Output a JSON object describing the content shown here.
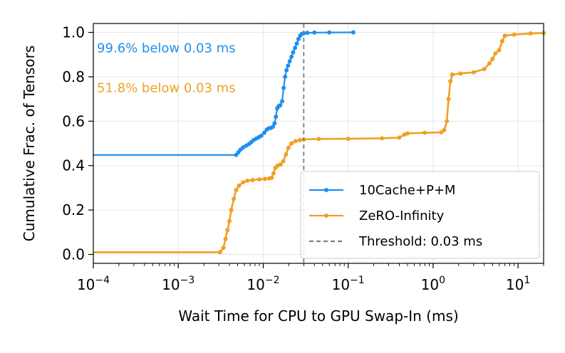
{
  "chart_data": {
    "type": "line",
    "title": "",
    "xlabel": "Wait Time for CPU to GPU Swap-In (ms)",
    "ylabel": "Cumulative Frac. of Tensors",
    "xscale": "log",
    "xlim": [
      0.0001,
      20
    ],
    "ylim": [
      -0.04,
      1.04
    ],
    "grid": true,
    "legend_position": "lower-right",
    "x_ticks": [
      {
        "value": 0.0001,
        "base": "10",
        "exp": "−4"
      },
      {
        "value": 0.001,
        "base": "10",
        "exp": "−3"
      },
      {
        "value": 0.01,
        "base": "10",
        "exp": "−2"
      },
      {
        "value": 0.1,
        "base": "10",
        "exp": "−1"
      },
      {
        "value": 1,
        "base": "10",
        "exp": "0"
      },
      {
        "value": 10,
        "base": "10",
        "exp": "1"
      }
    ],
    "y_ticks": [
      {
        "value": 0.0,
        "label": "0.0"
      },
      {
        "value": 0.2,
        "label": "0.2"
      },
      {
        "value": 0.4,
        "label": "0.4"
      },
      {
        "value": 0.6,
        "label": "0.6"
      },
      {
        "value": 0.8,
        "label": "0.8"
      },
      {
        "value": 1.0,
        "label": "1.0"
      }
    ],
    "series": [
      {
        "name": "10Cache+P+M",
        "color": "#1f8ff0",
        "points": [
          [
            0.0001,
            0.448
          ],
          [
            0.0048,
            0.448
          ],
          [
            0.0051,
            0.46
          ],
          [
            0.0054,
            0.472
          ],
          [
            0.0058,
            0.482
          ],
          [
            0.0063,
            0.49
          ],
          [
            0.0068,
            0.497
          ],
          [
            0.0072,
            0.505
          ],
          [
            0.0077,
            0.515
          ],
          [
            0.0083,
            0.522
          ],
          [
            0.0089,
            0.528
          ],
          [
            0.0095,
            0.535
          ],
          [
            0.0103,
            0.548
          ],
          [
            0.011,
            0.562
          ],
          [
            0.0117,
            0.568
          ],
          [
            0.0124,
            0.57
          ],
          [
            0.013,
            0.575
          ],
          [
            0.0136,
            0.59
          ],
          [
            0.0141,
            0.62
          ],
          [
            0.0146,
            0.658
          ],
          [
            0.0152,
            0.668
          ],
          [
            0.0159,
            0.672
          ],
          [
            0.0167,
            0.69
          ],
          [
            0.0174,
            0.75
          ],
          [
            0.0181,
            0.8
          ],
          [
            0.0188,
            0.83
          ],
          [
            0.0196,
            0.85
          ],
          [
            0.0205,
            0.87
          ],
          [
            0.0215,
            0.89
          ],
          [
            0.0225,
            0.91
          ],
          [
            0.0237,
            0.93
          ],
          [
            0.0248,
            0.95
          ],
          [
            0.026,
            0.97
          ],
          [
            0.0272,
            0.985
          ],
          [
            0.0285,
            0.993
          ],
          [
            0.03,
            0.996
          ],
          [
            0.033,
            0.998
          ],
          [
            0.04,
            0.999
          ],
          [
            0.06,
            0.9995
          ],
          [
            0.115,
            1.0
          ]
        ]
      },
      {
        "name": "ZeRO-Infinity",
        "color": "#f0a026",
        "points": [
          [
            0.0001,
            0.01
          ],
          [
            0.0031,
            0.01
          ],
          [
            0.0034,
            0.03
          ],
          [
            0.0036,
            0.07
          ],
          [
            0.0038,
            0.11
          ],
          [
            0.004,
            0.15
          ],
          [
            0.0042,
            0.2
          ],
          [
            0.0045,
            0.25
          ],
          [
            0.0048,
            0.29
          ],
          [
            0.0052,
            0.31
          ],
          [
            0.0058,
            0.325
          ],
          [
            0.0065,
            0.332
          ],
          [
            0.0075,
            0.335
          ],
          [
            0.009,
            0.338
          ],
          [
            0.0105,
            0.34
          ],
          [
            0.0118,
            0.342
          ],
          [
            0.0126,
            0.345
          ],
          [
            0.0132,
            0.365
          ],
          [
            0.0139,
            0.39
          ],
          [
            0.0148,
            0.4
          ],
          [
            0.016,
            0.405
          ],
          [
            0.0172,
            0.42
          ],
          [
            0.0185,
            0.45
          ],
          [
            0.0198,
            0.48
          ],
          [
            0.0215,
            0.5
          ],
          [
            0.024,
            0.51
          ],
          [
            0.027,
            0.515
          ],
          [
            0.03,
            0.518
          ],
          [
            0.045,
            0.52
          ],
          [
            0.1,
            0.521
          ],
          [
            0.25,
            0.523
          ],
          [
            0.4,
            0.526
          ],
          [
            0.46,
            0.54
          ],
          [
            0.5,
            0.545
          ],
          [
            0.8,
            0.548
          ],
          [
            1.25,
            0.55
          ],
          [
            1.35,
            0.56
          ],
          [
            1.45,
            0.6
          ],
          [
            1.52,
            0.7
          ],
          [
            1.6,
            0.78
          ],
          [
            1.68,
            0.81
          ],
          [
            2.1,
            0.815
          ],
          [
            3.0,
            0.82
          ],
          [
            4.0,
            0.835
          ],
          [
            4.6,
            0.86
          ],
          [
            5.0,
            0.88
          ],
          [
            5.4,
            0.905
          ],
          [
            6.0,
            0.92
          ],
          [
            6.5,
            0.96
          ],
          [
            7.0,
            0.985
          ],
          [
            9.0,
            0.99
          ],
          [
            14.0,
            0.995
          ],
          [
            20.0,
            0.997
          ]
        ]
      }
    ],
    "threshold": {
      "x": 0.03,
      "label": "Threshold: 0.03 ms",
      "color": "#7f7f7f"
    },
    "annotations": [
      {
        "text": "99.6% below 0.03 ms",
        "color": "#1f8ff0",
        "x": 0.0001,
        "y": 0.93
      },
      {
        "text": "51.8% below 0.03 ms",
        "color": "#f0a026",
        "x": 0.0001,
        "y": 0.75
      }
    ]
  }
}
